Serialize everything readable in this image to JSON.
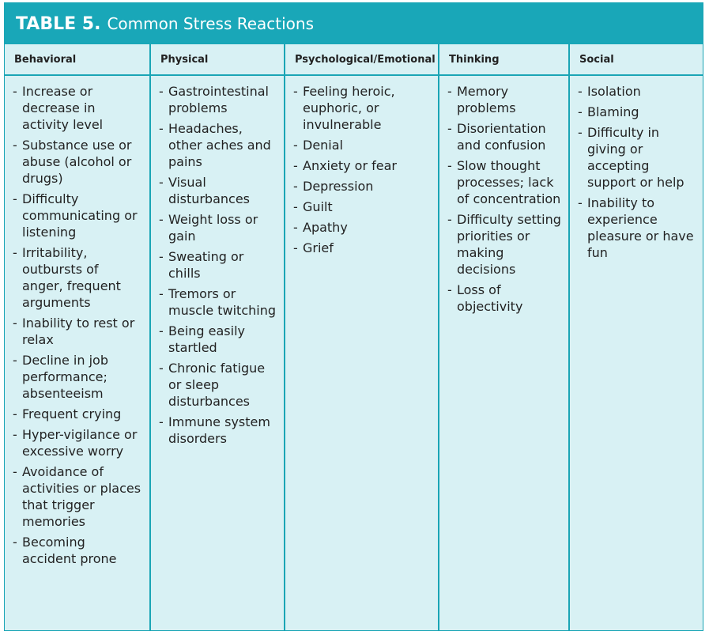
{
  "header": {
    "label": "TABLE 5.",
    "title": "Common Stress Reactions"
  },
  "table": {
    "columns": [
      {
        "heading": "Behavioral",
        "items": [
          "Increase or decrease in activity level",
          "Substance use or abuse (alcohol or drugs)",
          "Difficulty communicating or listening",
          "Irritability, outbursts of anger, frequent arguments",
          "Inability to rest or relax",
          "Decline in job performance; absenteeism",
          "Frequent crying",
          "Hyper-vigilance or excessive worry",
          "Avoidance of activities or places that trigger memories",
          "Becoming accident prone"
        ]
      },
      {
        "heading": "Physical",
        "items": [
          "Gastrointestinal problems",
          "Headaches, other aches and pains",
          "Visual disturbances",
          "Weight loss or gain",
          "Sweating or chills",
          "Tremors or muscle twitching",
          "Being easily startled",
          "Chronic fatigue or sleep disturbances",
          "Immune system disorders"
        ]
      },
      {
        "heading": "Psychological/Emotional",
        "items": [
          "Feeling heroic, euphoric, or invulnerable",
          "Denial",
          "Anxiety or fear",
          "Depression",
          "Guilt",
          "Apathy",
          "Grief"
        ]
      },
      {
        "heading": "Thinking",
        "items": [
          "Memory problems",
          "Disorientation and confusion",
          "Slow thought processes; lack of concentration",
          "Difficulty setting priorities or making decisions",
          "Loss of objectivity"
        ]
      },
      {
        "heading": "Social",
        "items": [
          "Isolation",
          "Blaming",
          "Difficulty in giving or accepting support or help",
          "Inability to experience pleasure or have fun"
        ]
      }
    ]
  }
}
